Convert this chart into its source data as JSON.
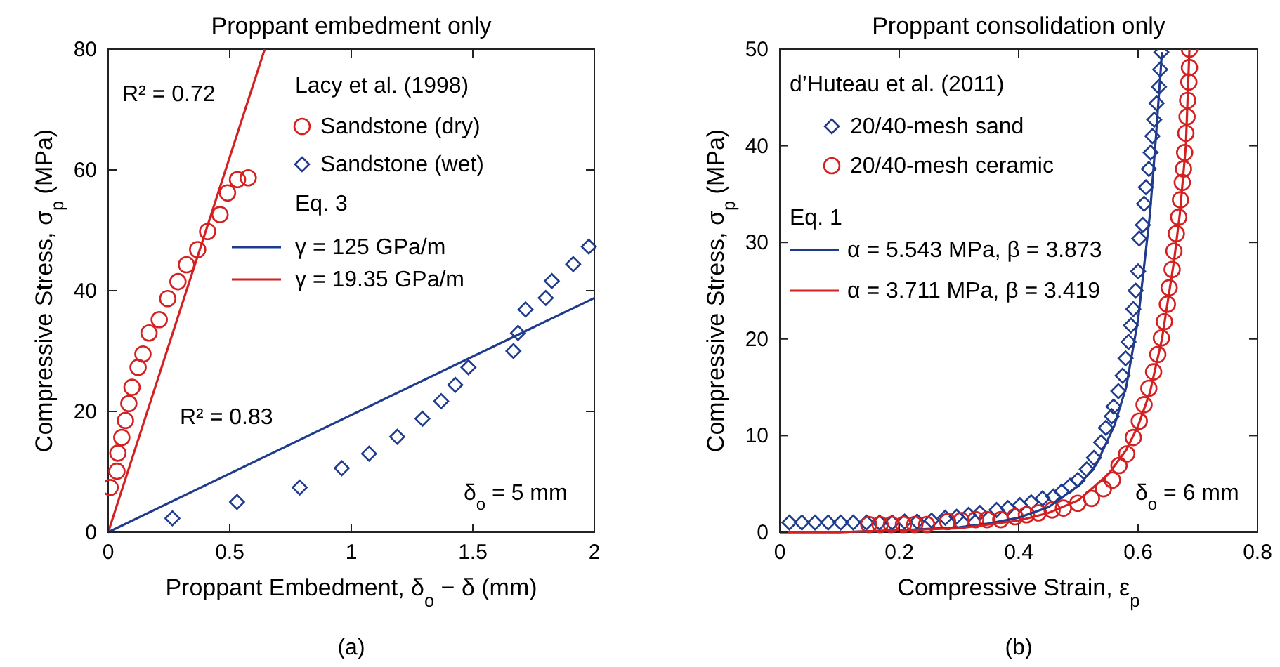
{
  "chart_data": [
    {
      "type": "scatter",
      "title": "Proppant embedment only",
      "xlabel": "Proppant Embedment, δ$_{o}$ − δ (mm)",
      "ylabel": "Compressive Stress, σ$_{p}$ (MPa)",
      "legend_title": "Lacy et al. (1998)",
      "legend": "top right",
      "xlim": [
        0,
        2
      ],
      "ylim": [
        0,
        80
      ],
      "xticks": [
        0,
        0.5,
        1,
        1.5,
        2
      ],
      "yticks": [
        0,
        20,
        40,
        60,
        80
      ],
      "annotations": [
        "Eq. 3",
        "R² = 0.72",
        "R² = 0.83",
        "δ$_{o}$ = 5 mm",
        "(a)"
      ],
      "series": [
        {
          "name": "Sandstone (dry)",
          "marker": "circle",
          "color": "#d42020",
          "x": [
            0.008,
            0.036,
            0.04,
            0.056,
            0.071,
            0.085,
            0.098,
            0.123,
            0.143,
            0.168,
            0.21,
            0.245,
            0.287,
            0.322,
            0.368,
            0.409,
            0.46,
            0.491,
            0.532,
            0.576
          ],
          "values": [
            7.4,
            10.1,
            13.1,
            15.7,
            18.5,
            21.3,
            24.0,
            27.3,
            29.5,
            33.0,
            35.2,
            38.7,
            41.5,
            44.3,
            46.8,
            49.8,
            52.6,
            56.2,
            58.4,
            58.7
          ]
        },
        {
          "name": "Sandstone (wet)",
          "marker": "diamond",
          "color": "#1f3b8c",
          "x": [
            0.264,
            0.53,
            0.788,
            0.961,
            1.073,
            1.189,
            1.293,
            1.37,
            1.428,
            1.482,
            1.667,
            1.686,
            1.717,
            1.8,
            1.825,
            1.913,
            1.977
          ],
          "values": [
            2.3,
            5.0,
            7.4,
            10.6,
            13.0,
            15.8,
            18.8,
            21.7,
            24.4,
            27.3,
            30.0,
            33.0,
            36.9,
            38.8,
            41.6,
            44.4,
            47.3
          ]
        },
        {
          "name": "γ = 125 GPa/m",
          "type": "line",
          "marker": "none",
          "color": "#1f3b8c",
          "x": [
            0,
            2
          ],
          "values": [
            0,
            38.8
          ]
        },
        {
          "name": "γ = 19.35 GPa/m",
          "type": "line",
          "marker": "none",
          "color": "#d42020",
          "x": [
            0,
            0.644
          ],
          "values": [
            0,
            80
          ]
        }
      ]
    },
    {
      "type": "scatter",
      "title": "Proppant consolidation only",
      "xlabel": "Compressive Strain, ε$_{p}$",
      "ylabel": "Compressive Stress, σ$_{p}$ (MPa)",
      "legend_title": "d’Huteau et al. (2011)",
      "legend": "top left",
      "xlim": [
        0,
        0.8
      ],
      "ylim": [
        0,
        50
      ],
      "xticks": [
        0,
        0.2,
        0.4,
        0.6,
        0.8
      ],
      "yticks": [
        0,
        10,
        20,
        30,
        40,
        50
      ],
      "annotations": [
        "Eq. 1",
        "δ$_{o}$ = 6 mm",
        "(b)"
      ],
      "series": [
        {
          "name": "20/40-mesh sand",
          "marker": "diamond",
          "color": "#1f3b8c",
          "x": [
            0.016,
            0.037,
            0.059,
            0.081,
            0.102,
            0.123,
            0.145,
            0.167,
            0.188,
            0.209,
            0.23,
            0.254,
            0.277,
            0.296,
            0.316,
            0.335,
            0.363,
            0.382,
            0.402,
            0.421,
            0.44,
            0.458,
            0.472,
            0.486,
            0.499,
            0.514,
            0.526,
            0.538,
            0.546,
            0.556,
            0.559,
            0.567,
            0.574,
            0.579,
            0.584,
            0.588,
            0.592,
            0.596,
            0.6,
            0.602,
            0.608,
            0.61,
            0.613,
            0.618,
            0.621,
            0.624,
            0.627,
            0.631,
            0.635,
            0.637,
            0.639
          ],
          "values": [
            1.0,
            1.0,
            1.0,
            1.0,
            1.0,
            1.0,
            1.0,
            1.0,
            1.0,
            1.1,
            1.1,
            1.2,
            1.5,
            1.6,
            1.8,
            2.0,
            2.3,
            2.5,
            2.8,
            3.1,
            3.5,
            3.7,
            4.2,
            4.8,
            5.4,
            6.5,
            7.7,
            9.3,
            10.8,
            12.0,
            13.0,
            14.6,
            16.2,
            18.0,
            19.7,
            21.4,
            23.1,
            25.0,
            27.0,
            30.4,
            31.8,
            34.0,
            35.7,
            37.6,
            39.3,
            41.0,
            42.7,
            44.4,
            46.1,
            47.9,
            49.7
          ]
        },
        {
          "name": "20/40-mesh ceramic",
          "marker": "circle",
          "color": "#d42020",
          "x": [
            0.149,
            0.168,
            0.187,
            0.207,
            0.226,
            0.246,
            0.281,
            0.304,
            0.328,
            0.347,
            0.37,
            0.394,
            0.413,
            0.433,
            0.456,
            0.475,
            0.499,
            0.522,
            0.542,
            0.557,
            0.568,
            0.581,
            0.592,
            0.602,
            0.61,
            0.618,
            0.626,
            0.633,
            0.639,
            0.644,
            0.649,
            0.652,
            0.657,
            0.66,
            0.664,
            0.668,
            0.671,
            0.674,
            0.676,
            0.678,
            0.68,
            0.682,
            0.683,
            0.685,
            0.686,
            0.686
          ],
          "values": [
            0.8,
            0.8,
            0.8,
            0.8,
            0.8,
            0.8,
            1.1,
            1.2,
            1.3,
            1.3,
            1.3,
            1.6,
            1.8,
            2.0,
            2.3,
            2.5,
            3.0,
            3.5,
            4.5,
            5.4,
            6.9,
            8.1,
            9.8,
            11.5,
            13.2,
            14.9,
            16.6,
            18.4,
            20.1,
            21.8,
            23.6,
            25.3,
            27.2,
            29.1,
            30.9,
            32.6,
            34.4,
            36.2,
            37.6,
            39.3,
            41.3,
            43.0,
            44.7,
            46.6,
            48.1,
            50.0
          ]
        },
        {
          "name": "α = 5.543 MPa, β = 3.873",
          "type": "line",
          "marker": "none",
          "color": "#1f3b8c",
          "x": [
            0,
            0.1,
            0.2,
            0.3,
            0.35,
            0.4,
            0.45,
            0.5,
            0.53,
            0.56,
            0.58,
            0.6,
            0.62,
            0.63,
            0.64
          ],
          "values": [
            0,
            0,
            0.2,
            0.5,
            0.9,
            1.5,
            2.6,
            4.8,
            7,
            11,
            15,
            22,
            33,
            41,
            49.7
          ]
        },
        {
          "name": "α = 3.711 MPa, β = 3.419",
          "type": "line",
          "marker": "none",
          "color": "#d42020",
          "x": [
            0,
            0.1,
            0.2,
            0.3,
            0.4,
            0.45,
            0.5,
            0.55,
            0.58,
            0.6,
            0.62,
            0.64,
            0.66,
            0.67,
            0.68,
            0.686
          ],
          "values": [
            0,
            0,
            0.2,
            0.4,
            1.2,
            2.0,
            3.3,
            6,
            8.5,
            11,
            14.5,
            20,
            28,
            33,
            40,
            50
          ]
        }
      ]
    }
  ]
}
